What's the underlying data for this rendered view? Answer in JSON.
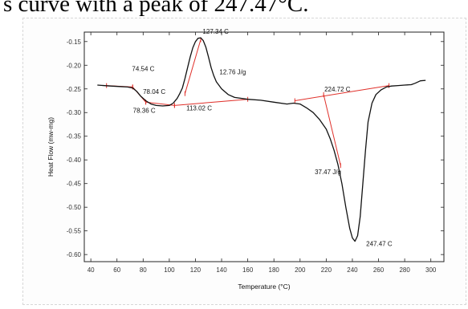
{
  "caption": {
    "partial_text": "s curve with a peak of 247.47°C."
  },
  "chart_data": {
    "type": "line",
    "title": "",
    "xlabel": "Temperature (°C)",
    "ylabel": "Heat Flow (mw-mg)",
    "xlim": [
      35,
      310
    ],
    "ylim": [
      -0.615,
      -0.13
    ],
    "xticks": [
      40,
      60,
      80,
      100,
      120,
      140,
      160,
      180,
      200,
      220,
      240,
      260,
      280,
      300
    ],
    "xtick_labels": [
      "40",
      "60",
      "80",
      "100",
      "120",
      "140",
      "160",
      "180",
      "200",
      "220",
      "240",
      "260",
      "280",
      "300"
    ],
    "yticks": [
      -0.15,
      -0.2,
      -0.25,
      -0.3,
      -0.35,
      -0.4,
      -0.45,
      -0.5,
      -0.55,
      -0.6
    ],
    "ytick_labels": [
      "-0.15",
      "-0.20",
      "-0.25",
      "-0.30",
      "-0.35",
      "-0.40",
      "-0.45",
      "-0.50",
      "-0.55",
      "-0.60"
    ],
    "curve_color": "#111111",
    "annotation_color": "#e0302a",
    "series": [
      {
        "x": [
          45,
          55,
          62,
          68,
          72,
          75,
          78,
          82,
          86,
          90,
          95,
          100,
          103,
          106,
          108,
          110,
          112,
          114,
          116,
          118,
          120,
          122,
          124,
          126,
          128,
          130,
          132,
          134,
          136,
          140,
          145,
          150,
          160,
          170,
          180,
          190,
          195,
          200,
          205,
          210,
          215,
          220,
          223,
          226,
          229,
          232,
          235,
          238,
          240,
          242,
          244,
          246,
          248,
          250,
          252,
          255,
          258,
          262,
          266,
          270,
          275,
          280,
          285,
          288,
          292,
          296
        ],
        "y": [
          -0.242,
          -0.244,
          -0.245,
          -0.246,
          -0.248,
          -0.255,
          -0.265,
          -0.275,
          -0.282,
          -0.285,
          -0.286,
          -0.285,
          -0.28,
          -0.27,
          -0.26,
          -0.248,
          -0.228,
          -0.205,
          -0.182,
          -0.163,
          -0.15,
          -0.143,
          -0.142,
          -0.148,
          -0.162,
          -0.183,
          -0.205,
          -0.222,
          -0.235,
          -0.25,
          -0.262,
          -0.268,
          -0.272,
          -0.274,
          -0.278,
          -0.282,
          -0.28,
          -0.282,
          -0.29,
          -0.3,
          -0.315,
          -0.335,
          -0.355,
          -0.38,
          -0.41,
          -0.45,
          -0.5,
          -0.545,
          -0.565,
          -0.572,
          -0.56,
          -0.52,
          -0.45,
          -0.38,
          -0.32,
          -0.28,
          -0.262,
          -0.252,
          -0.246,
          -0.244,
          -0.243,
          -0.242,
          -0.241,
          -0.238,
          -0.233,
          -0.232
        ]
      }
    ],
    "annotations": [
      {
        "text": "74.54 C",
        "x": 74.54,
        "y": -0.2125
      },
      {
        "text": "78.04 C",
        "x": 78.04,
        "y": -0.2607
      },
      {
        "text": "78.36 C",
        "x": 78.36,
        "y": -0.3008
      },
      {
        "text": "113.02 C",
        "x": 113.02,
        "y": -0.2952
      },
      {
        "text": "127.34 C",
        "x": 127.34,
        "y": -0.1334
      },
      {
        "text": "12.76 J/g",
        "x": 127.34,
        "y": -0.2188
      },
      {
        "text": "224.72 C",
        "x": 224.72,
        "y": -0.2558
      },
      {
        "text": "37.47 J/g",
        "x": 224.72,
        "y": -0.4299
      },
      {
        "text": "247.47 C",
        "x": 247.47,
        "y": -0.5816
      }
    ],
    "construction_lines": [
      {
        "points": [
          [
            52,
            -0.243
          ],
          [
            72,
            -0.246
          ]
        ]
      },
      {
        "points": [
          [
            72,
            -0.246
          ],
          [
            82,
            -0.278
          ]
        ]
      },
      {
        "points": [
          [
            82,
            -0.278
          ],
          [
            104,
            -0.285
          ]
        ]
      },
      {
        "points": [
          [
            104,
            -0.285
          ],
          [
            160,
            -0.272
          ]
        ]
      },
      {
        "points": [
          [
            112,
            -0.26
          ],
          [
            124,
            -0.146
          ]
        ]
      },
      {
        "points": [
          [
            196,
            -0.275
          ],
          [
            268,
            -0.243
          ]
        ]
      },
      {
        "points": [
          [
            218,
            -0.262
          ],
          [
            231,
            -0.412
          ]
        ]
      }
    ]
  }
}
